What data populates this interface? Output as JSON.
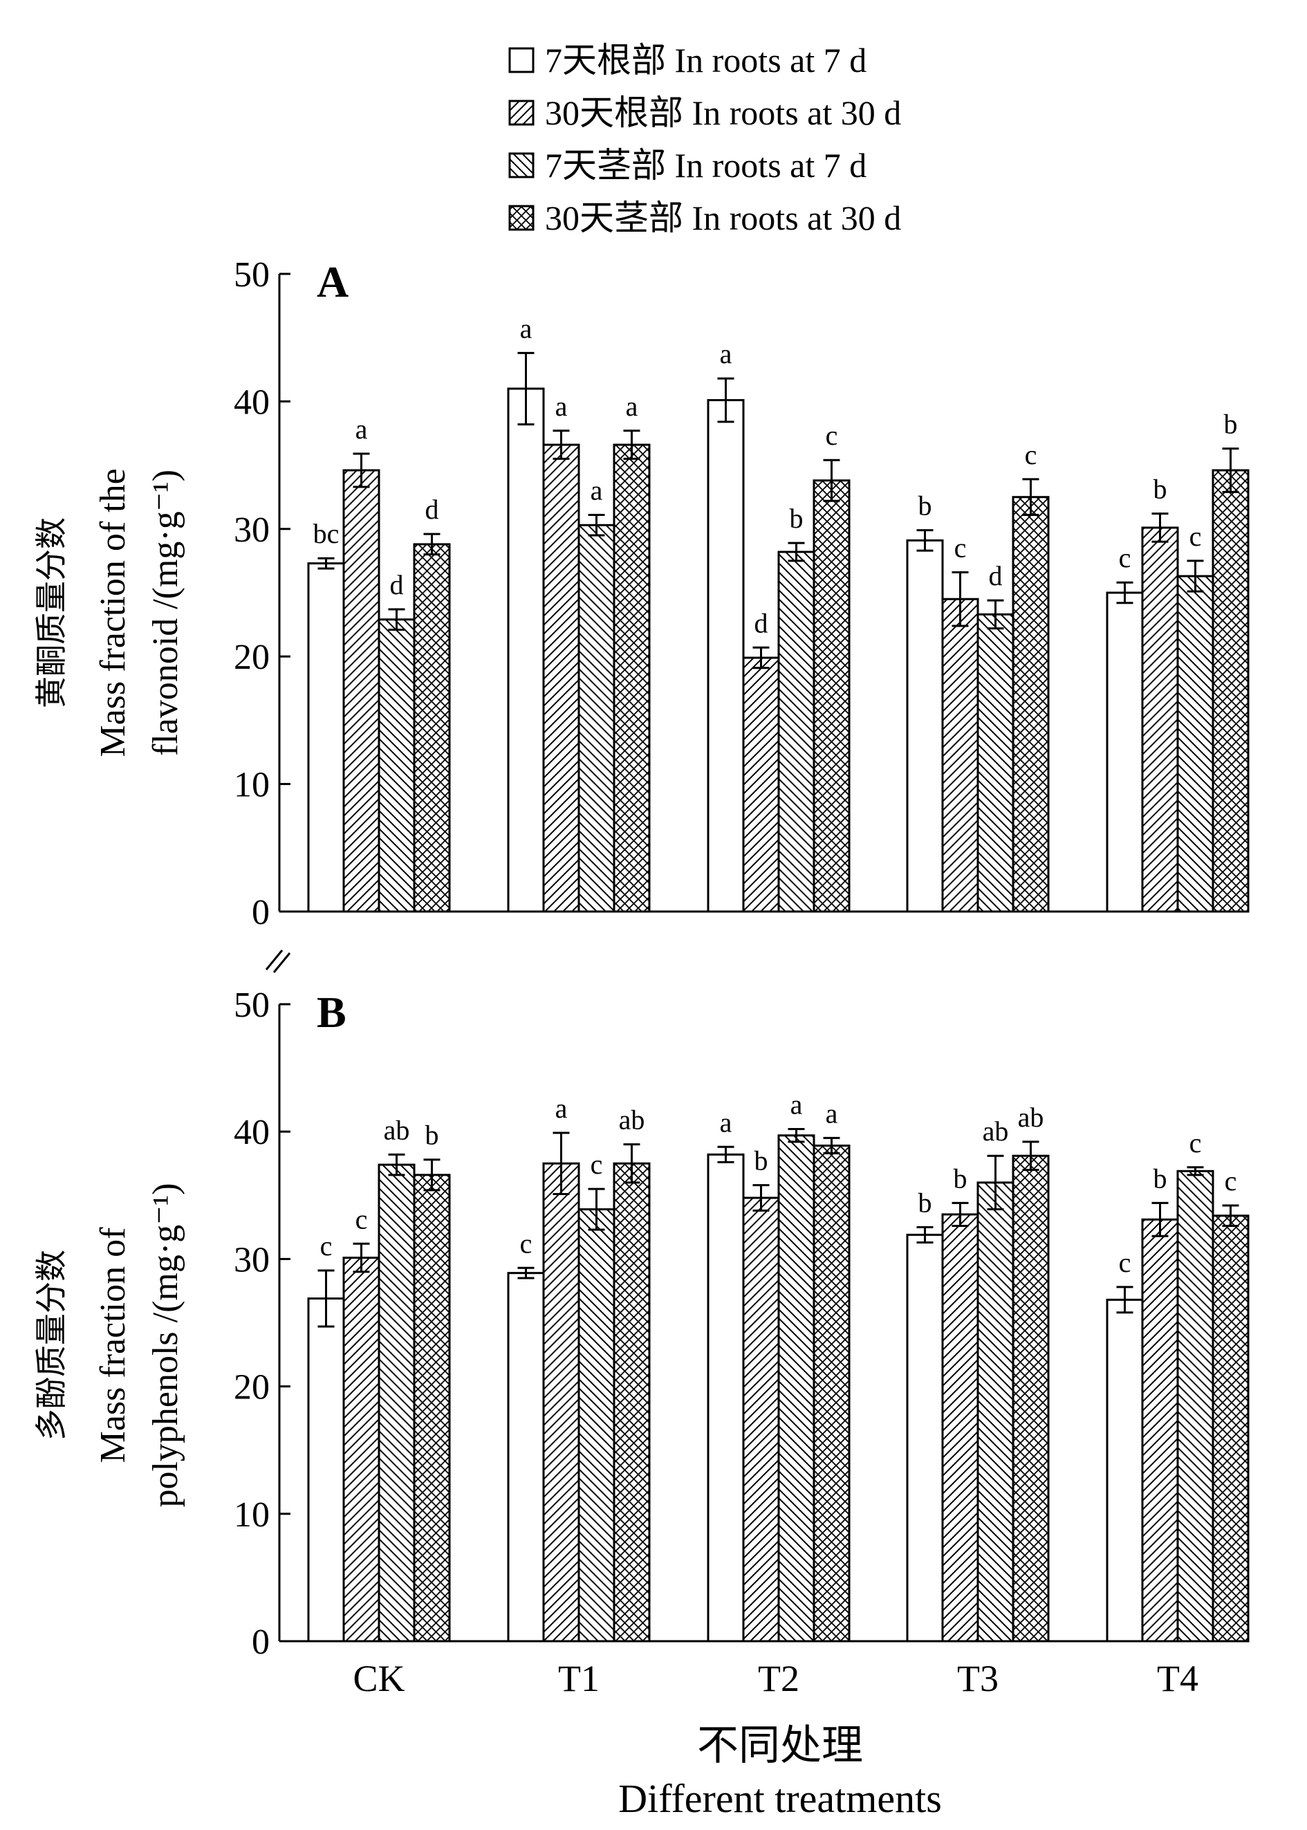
{
  "legend": [
    {
      "label": "7天根部 In roots at 7 d",
      "pattern": "white"
    },
    {
      "label": "30天根部 In roots at 30 d",
      "pattern": "hatch-fwd"
    },
    {
      "label": "7天茎部 In roots at 7 d",
      "pattern": "hatch-back"
    },
    {
      "label": "30天茎部 In roots at 30 d",
      "pattern": "crosshatch"
    }
  ],
  "xlabel_cn": "不同处理",
  "xlabel_en": "Different treatments",
  "colors": {
    "bar_fill": "#ffffff",
    "stroke": "#000000"
  },
  "chart_data": [
    {
      "type": "bar",
      "panel_label": "A",
      "ylabel_cn": "黄酮质量分数",
      "ylabel_en_1": "Mass fraction of the",
      "ylabel_en_2": "flavonoid /(mg·g⁻¹)",
      "ylim": [
        0,
        50
      ],
      "yticks": [
        0,
        10,
        20,
        30,
        40,
        50
      ],
      "categories": [
        "CK",
        "T1",
        "T2",
        "T3",
        "T4"
      ],
      "series": [
        {
          "name": "7天根部 In roots at 7 d",
          "values": [
            27.3,
            41.0,
            40.1,
            29.1,
            25.0
          ],
          "errors": [
            0.4,
            2.8,
            1.7,
            0.8,
            0.8
          ],
          "letters": [
            "bc",
            "a",
            "a",
            "b",
            "c"
          ]
        },
        {
          "name": "30天根部 In roots at 30 d",
          "values": [
            34.6,
            36.6,
            19.9,
            24.5,
            30.1
          ],
          "errors": [
            1.3,
            1.1,
            0.8,
            2.1,
            1.1
          ],
          "letters": [
            "a",
            "a",
            "d",
            "c",
            "b"
          ]
        },
        {
          "name": "7天茎部 In roots at 7 d",
          "values": [
            22.9,
            30.3,
            28.2,
            23.3,
            26.3
          ],
          "errors": [
            0.8,
            0.8,
            0.7,
            1.1,
            1.2
          ],
          "letters": [
            "d",
            "a",
            "b",
            "d",
            "c"
          ]
        },
        {
          "name": "30天茎部 In roots at 30 d",
          "values": [
            28.8,
            36.6,
            33.8,
            32.5,
            34.6
          ],
          "errors": [
            0.8,
            1.1,
            1.6,
            1.4,
            1.7
          ],
          "letters": [
            "d",
            "a",
            "c",
            "c",
            "b"
          ]
        }
      ]
    },
    {
      "type": "bar",
      "panel_label": "B",
      "ylabel_cn": "多酚质量分数",
      "ylabel_en_1": "Mass fraction of",
      "ylabel_en_2": "polyphenols /(mg·g⁻¹)",
      "ylim": [
        0,
        50
      ],
      "yticks": [
        0,
        10,
        20,
        30,
        40,
        50
      ],
      "categories": [
        "CK",
        "T1",
        "T2",
        "T3",
        "T4"
      ],
      "series": [
        {
          "name": "7天根部 In roots at 7 d",
          "values": [
            26.9,
            28.9,
            38.2,
            31.9,
            26.8
          ],
          "errors": [
            2.2,
            0.4,
            0.6,
            0.6,
            1.0
          ],
          "letters": [
            "c",
            "c",
            "a",
            "b",
            "c"
          ]
        },
        {
          "name": "30天根部 In roots at 30 d",
          "values": [
            30.1,
            37.5,
            34.8,
            33.5,
            33.1
          ],
          "errors": [
            1.1,
            2.4,
            1.0,
            0.9,
            1.3
          ],
          "letters": [
            "c",
            "a",
            "b",
            "b",
            "b"
          ]
        },
        {
          "name": "7天茎部 In roots at 7 d",
          "values": [
            37.4,
            33.9,
            39.7,
            36.0,
            36.9
          ],
          "errors": [
            0.8,
            1.6,
            0.5,
            2.1,
            0.3
          ],
          "letters": [
            "ab",
            "c",
            "a",
            "ab",
            "c"
          ]
        },
        {
          "name": "30天茎部 In roots at 30 d",
          "values": [
            36.6,
            37.5,
            38.9,
            38.1,
            33.4
          ],
          "errors": [
            1.2,
            1.5,
            0.6,
            1.1,
            0.8
          ],
          "letters": [
            "b",
            "ab",
            "a",
            "ab",
            "c"
          ]
        }
      ]
    }
  ]
}
